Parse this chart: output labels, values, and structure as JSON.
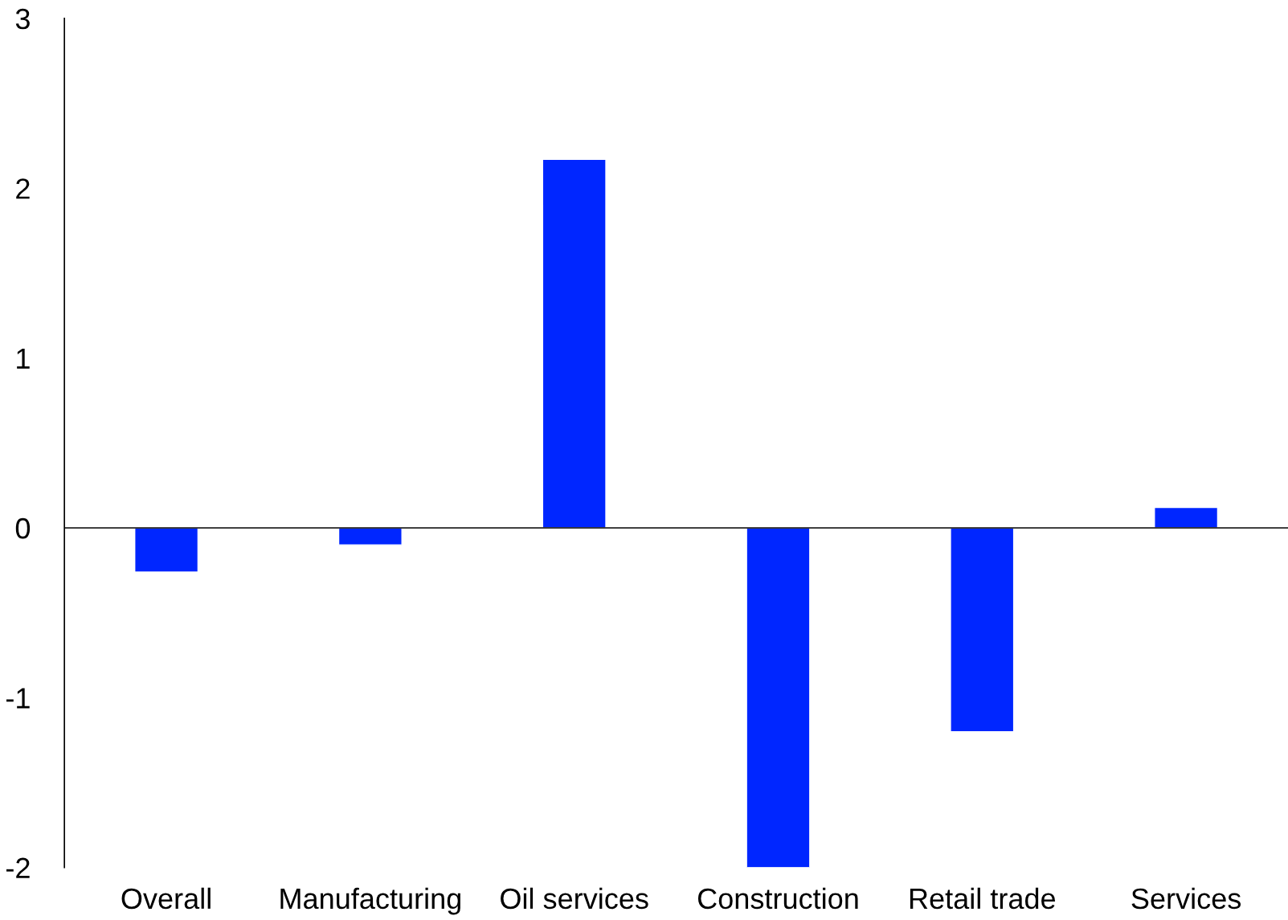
{
  "chart_data": {
    "type": "bar",
    "categories": [
      "Overall",
      "Manufacturing",
      "Oil services",
      "Construction",
      "Retail trade",
      "Services"
    ],
    "values": [
      -0.26,
      -0.1,
      2.17,
      -2.0,
      -1.2,
      0.12
    ],
    "color": "#0026ff",
    "ylim": [
      -2,
      3
    ],
    "yticks": [
      -2,
      -1,
      0,
      1,
      2,
      3
    ],
    "ref_lines": [
      {
        "axis": "y",
        "value": 0,
        "color": "#000000"
      }
    ],
    "grid": false
  }
}
